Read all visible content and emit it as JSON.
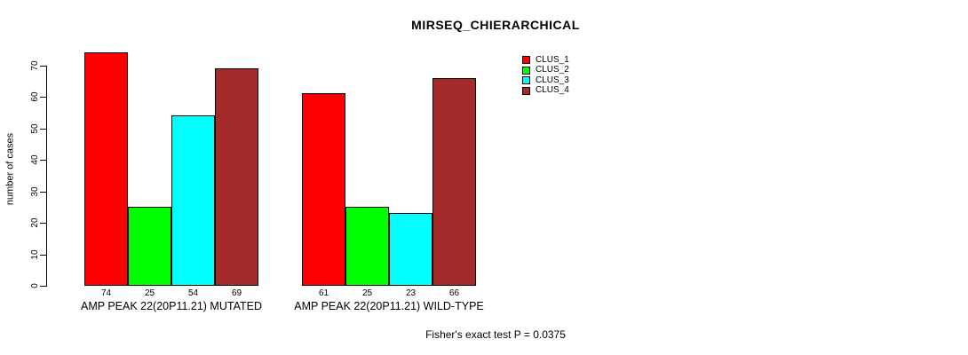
{
  "title": "MIRSEQ_CHIERARCHICAL",
  "footer": "Fisher's exact test P = 0.0375",
  "colors": {
    "clus_1": "#FF0000",
    "clus_2": "#00FF00",
    "clus_3": "#00FFFF",
    "clus_4": "#A52A2A",
    "axis": "#000000",
    "background": "#FFFFFF"
  },
  "chart_data": {
    "type": "bar",
    "title": "MIRSEQ_CHIERARCHICAL",
    "xlabel": "",
    "ylabel": "number of cases",
    "ylim": [
      0,
      70
    ],
    "yticks": [
      0,
      10,
      20,
      30,
      40,
      50,
      60,
      70
    ],
    "grid": false,
    "legend_position": "top-right",
    "categories": [
      "AMP PEAK 22(20P11.21) MUTATED",
      "AMP PEAK 22(20P11.21) WILD-TYPE"
    ],
    "series": [
      {
        "name": "CLUS_1",
        "color": "#FF0000",
        "values": [
          74,
          61
        ]
      },
      {
        "name": "CLUS_2",
        "color": "#00FF00",
        "values": [
          25,
          25
        ]
      },
      {
        "name": "CLUS_3",
        "color": "#00FFFF",
        "values": [
          54,
          23
        ]
      },
      {
        "name": "CLUS_4",
        "color": "#A52A2A",
        "values": [
          69,
          66
        ]
      }
    ],
    "bar_value_labels": [
      [
        "74",
        "25",
        "54",
        "69"
      ],
      [
        "61",
        "25",
        "23",
        "66"
      ]
    ],
    "annotation": "Fisher's exact test P = 0.0375"
  }
}
